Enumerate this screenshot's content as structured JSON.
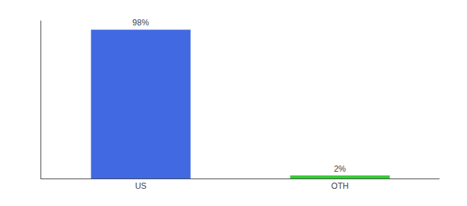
{
  "chart_data": {
    "type": "bar",
    "categories": [
      "US",
      "OTH"
    ],
    "values": [
      98,
      2
    ],
    "value_labels": [
      "98%",
      "2%"
    ],
    "colors": [
      "#4169E1",
      "#33CC33"
    ],
    "data_labels": true,
    "ylim": [
      0,
      104
    ],
    "grid": false,
    "tick_labels": "x"
  }
}
